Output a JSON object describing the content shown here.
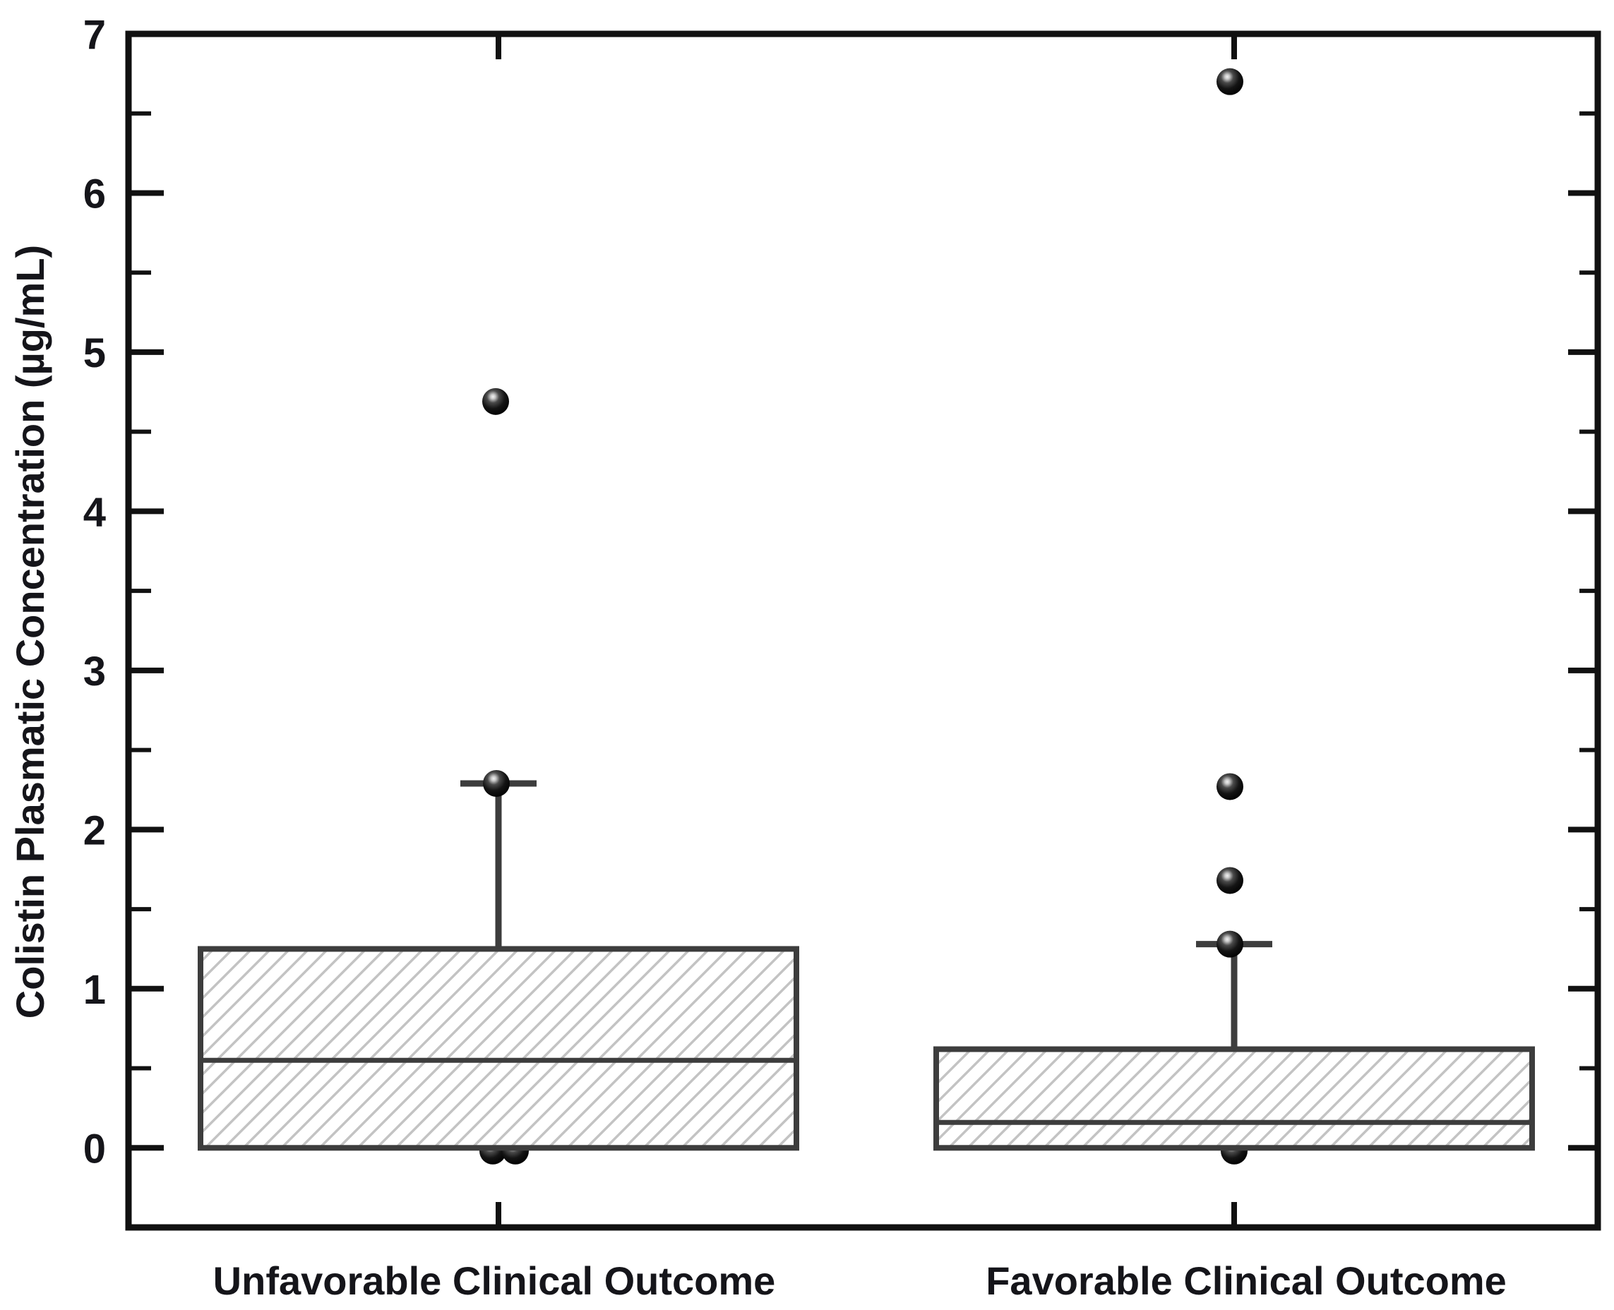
{
  "chart_data": {
    "type": "boxplot",
    "title": "",
    "ylabel": "Colistin Plasmatic Concentration (µg/mL)",
    "xlabel": "",
    "ylim": [
      -0.5,
      7
    ],
    "grid": false,
    "legend": "none",
    "yticks_major": [
      0,
      1,
      2,
      3,
      4,
      5,
      6,
      7
    ],
    "yticks_minor": [
      0.5,
      1.5,
      2.5,
      3.5,
      4.5,
      5.5,
      6.5
    ],
    "categories": [
      "Unfavorable Clinical Outcome",
      "Favorable Clinical Outcome"
    ],
    "series": [
      {
        "name": "Unfavorable Clinical Outcome",
        "q1": 0.0,
        "median": 0.55,
        "q3": 1.25,
        "whisker_low": 0.0,
        "whisker_high": 2.29,
        "dots": [
          {
            "value": 4.69,
            "dx": -4
          },
          {
            "value": 2.29,
            "dx": -3
          }
        ],
        "dots_behind": [
          {
            "value": -0.02,
            "dx": -8
          },
          {
            "value": -0.02,
            "dx": 24
          }
        ]
      },
      {
        "name": "Favorable Clinical Outcome",
        "q1": 0.0,
        "median": 0.16,
        "q3": 0.62,
        "whisker_low": 0.0,
        "whisker_high": 1.28,
        "dots": [
          {
            "value": 6.7,
            "dx": -6
          },
          {
            "value": 2.27,
            "dx": -6
          },
          {
            "value": 1.68,
            "dx": -6
          },
          {
            "value": 1.28,
            "dx": -6
          }
        ],
        "dots_behind": [
          {
            "value": -0.02,
            "dx": 0
          }
        ]
      }
    ],
    "style": {
      "frame_color": "#111111",
      "box_edge_color": "#3d3d3d",
      "hatch_color": "#c3c3c3",
      "point_color": "#000000",
      "text_color": "#15151a"
    }
  }
}
